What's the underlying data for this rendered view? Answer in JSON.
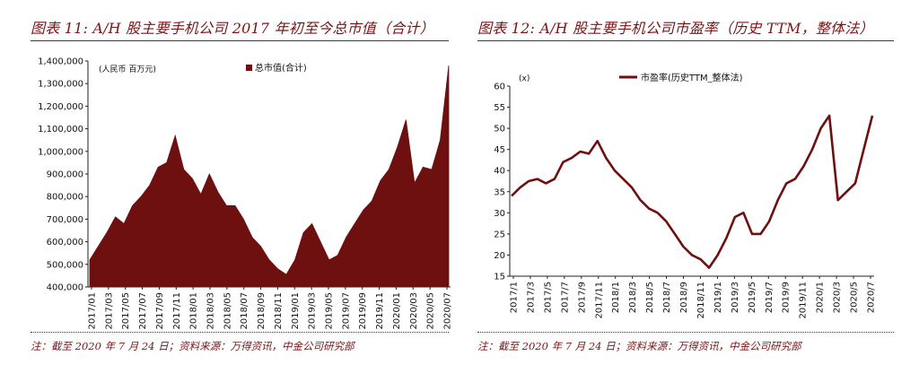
{
  "chart_data": [
    {
      "type": "area",
      "title": "图表 11: A/H 股主要手机公司 2017 年初至今总市值（合计）",
      "unit_label": "(人民币 百万元)",
      "note": "注：截至 2020 年 7 月 24 日；资料来源：万得资讯，中金公司研究部",
      "color": "#6e0f10",
      "ylim": [
        400000,
        1400000
      ],
      "y_ticks": [
        "400,000",
        "500,000",
        "600,000",
        "700,000",
        "800,000",
        "900,000",
        "1,000,000",
        "1,100,000",
        "1,200,000",
        "1,300,000",
        "1,400,000"
      ],
      "y_tick_values": [
        400000,
        500000,
        600000,
        700000,
        800000,
        900000,
        1000000,
        1100000,
        1200000,
        1300000,
        1400000
      ],
      "x_ticks": [
        "2017/01",
        "2017/03",
        "2017/05",
        "2017/07",
        "2017/09",
        "2017/11",
        "2018/01",
        "2018/03",
        "2018/05",
        "2018/07",
        "2018/09",
        "2018/11",
        "2019/01",
        "2019/03",
        "2019/05",
        "2019/07",
        "2019/09",
        "2019/11",
        "2020/01",
        "2020/03",
        "2020/05",
        "2020/07"
      ],
      "legend": "总市值(合计)",
      "series": [
        {
          "name": "总市值(合计)",
          "x": [
            "2017/01",
            "2017/02",
            "2017/03",
            "2017/04",
            "2017/05",
            "2017/06",
            "2017/07",
            "2017/08",
            "2017/09",
            "2017/10",
            "2017/11",
            "2017/12",
            "2018/01",
            "2018/02",
            "2018/03",
            "2018/04",
            "2018/05",
            "2018/06",
            "2018/07",
            "2018/08",
            "2018/09",
            "2018/10",
            "2018/11",
            "2018/12",
            "2019/01",
            "2019/02",
            "2019/03",
            "2019/04",
            "2019/05",
            "2019/06",
            "2019/07",
            "2019/08",
            "2019/09",
            "2019/10",
            "2019/11",
            "2019/12",
            "2020/01",
            "2020/02",
            "2020/03",
            "2020/04",
            "2020/05",
            "2020/06",
            "2020/07"
          ],
          "values": [
            520000,
            580000,
            640000,
            710000,
            680000,
            760000,
            800000,
            850000,
            930000,
            950000,
            1070000,
            920000,
            880000,
            810000,
            900000,
            820000,
            760000,
            760000,
            700000,
            620000,
            580000,
            520000,
            480000,
            455000,
            520000,
            640000,
            680000,
            600000,
            520000,
            540000,
            620000,
            680000,
            740000,
            780000,
            870000,
            920000,
            1020000,
            1140000,
            860000,
            930000,
            920000,
            1050000,
            1380000
          ]
        }
      ]
    },
    {
      "type": "line",
      "title": "图表 12: A/H 股主要手机公司市盈率（历史 TTM，整体法）",
      "unit_label": "(x)",
      "note": "注：截至 2020 年 7 月 24 日；资料来源：万得资讯，中金公司研究部",
      "color": "#6e0f10",
      "ylim": [
        15,
        60
      ],
      "y_ticks": [
        "15",
        "20",
        "25",
        "30",
        "35",
        "40",
        "45",
        "50",
        "55",
        "60"
      ],
      "y_tick_values": [
        15,
        20,
        25,
        30,
        35,
        40,
        45,
        50,
        55,
        60
      ],
      "x_ticks": [
        "2017/1",
        "2017/3",
        "2017/5",
        "2017/7",
        "2017/9",
        "2017/11",
        "2018/1",
        "2018/3",
        "2018/5",
        "2018/7",
        "2018/9",
        "2018/11",
        "2019/1",
        "2019/3",
        "2019/5",
        "2019/7",
        "2019/9",
        "2019/11",
        "2020/1",
        "2020/3",
        "2020/5",
        "2020/7"
      ],
      "legend": "市盈率(历史TTM_整体法)",
      "series": [
        {
          "name": "市盈率(历史TTM_整体法)",
          "x": [
            "2017/01",
            "2017/02",
            "2017/03",
            "2017/04",
            "2017/05",
            "2017/06",
            "2017/07",
            "2017/08",
            "2017/09",
            "2017/10",
            "2017/11",
            "2017/12",
            "2018/01",
            "2018/02",
            "2018/03",
            "2018/04",
            "2018/05",
            "2018/06",
            "2018/07",
            "2018/08",
            "2018/09",
            "2018/10",
            "2018/11",
            "2018/12",
            "2019/01",
            "2019/02",
            "2019/03",
            "2019/04",
            "2019/05",
            "2019/06",
            "2019/07",
            "2019/08",
            "2019/09",
            "2019/10",
            "2019/11",
            "2019/12",
            "2020/01",
            "2020/02",
            "2020/03",
            "2020/04",
            "2020/05",
            "2020/06",
            "2020/07"
          ],
          "values": [
            34,
            36,
            37.5,
            38,
            37,
            38,
            42,
            43,
            44.5,
            44,
            47,
            43,
            40,
            38,
            36,
            33,
            31,
            30,
            28,
            25,
            22,
            20,
            19,
            17,
            20,
            24,
            29,
            30,
            25,
            25,
            28,
            33,
            37,
            38,
            41,
            45,
            50,
            53,
            33,
            35,
            37,
            45,
            53
          ]
        }
      ]
    }
  ]
}
